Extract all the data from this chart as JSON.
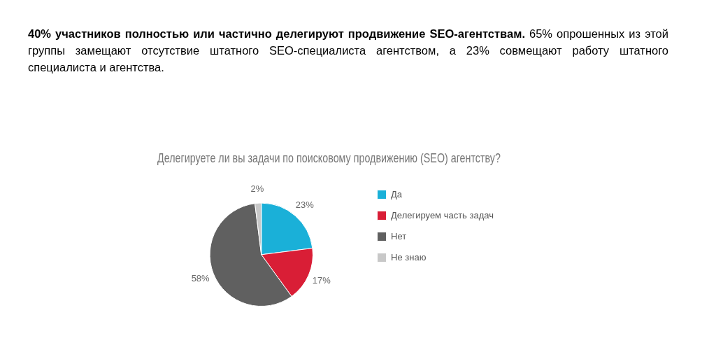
{
  "chart_data": {
    "type": "pie",
    "title": "Делегируете ли вы задачи по поисковому продвижению (SEO) агентству?",
    "annotations": [
      "40% участников полностью или частично делегируют продвижение SEO-агентствам.",
      "65% опрошенных из этой группы замещают отсутствие штатного SEO-специалиста агентством, а 23% совмещают работу штатного специалиста и агентства."
    ],
    "categories": [
      "Да",
      "Делегируем часть задач",
      "Нет",
      "Не знаю"
    ],
    "values": [
      23,
      17,
      58,
      2
    ],
    "colors": [
      "#1ab0d8",
      "#d91e36",
      "#606060",
      "#c8c8c8"
    ],
    "value_labels": [
      "23%",
      "17%",
      "58%",
      "2%"
    ],
    "legend": "right"
  }
}
